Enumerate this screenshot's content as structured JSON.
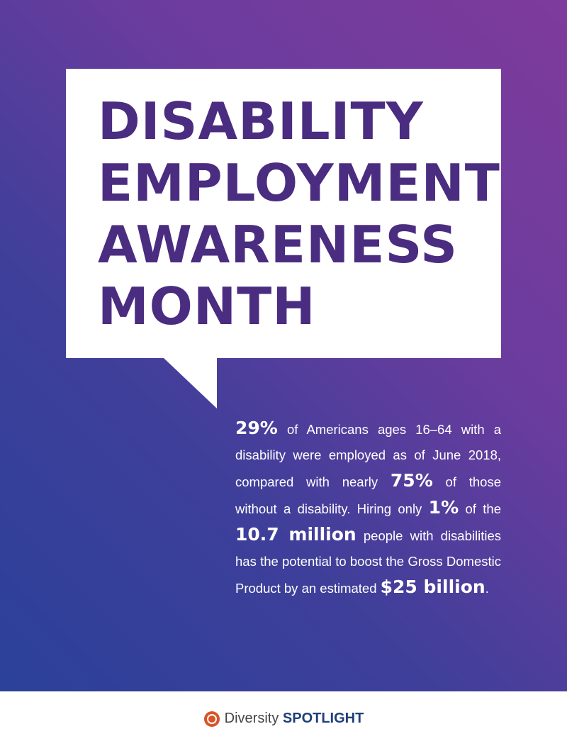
{
  "header": {
    "title_lines": [
      "DISABILITY",
      "EMPLOYMENT",
      "AWARENESS",
      "MONTH"
    ]
  },
  "body": {
    "segments": [
      "29%",
      "of Americans ages 16–64 with a disability were employed as of June 2018, compared with nearly",
      "75%",
      "of those without a disability. Hiring only",
      "1%",
      "of the",
      "10.7 million",
      "people with disabilities has the potential to boost the Gross Domestic Product by an estimated",
      "$25 billion",
      "."
    ]
  },
  "footer": {
    "brand": "Diversity",
    "brand_strong": "SPOTLIGHT"
  }
}
